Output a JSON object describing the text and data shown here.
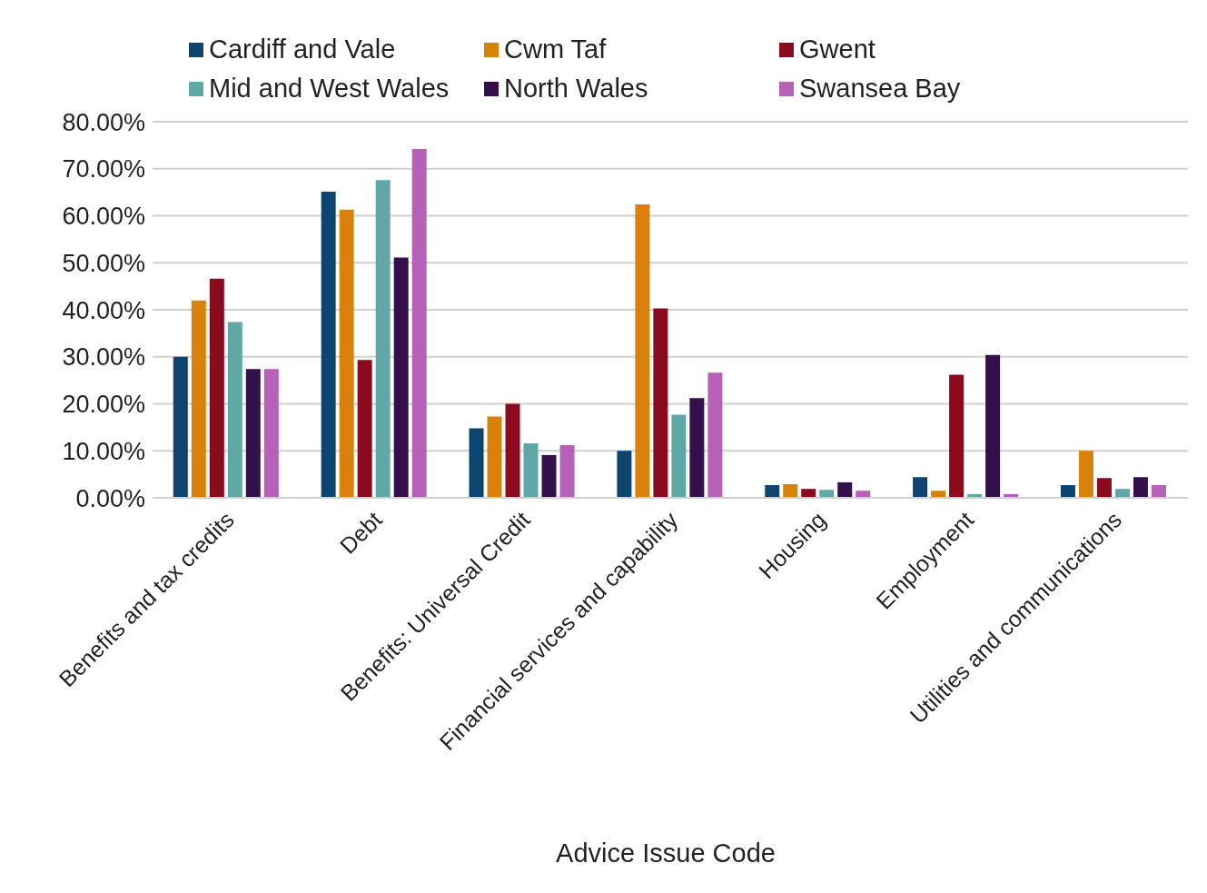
{
  "chart_data": {
    "type": "bar",
    "xlabel": "Advice Issue Code",
    "categories": [
      "Benefits and tax credits",
      "Debt",
      "Benefits: Universal Credit",
      "Financial services and capability",
      "Housing",
      "Employment",
      "Utilities and communications"
    ],
    "series": [
      {
        "name": "Cardiff and Vale",
        "color": "#0e4470",
        "values": [
          30,
          65.1,
          14.8,
          10,
          2.7,
          4.4,
          2.7
        ]
      },
      {
        "name": "Cwm Taf",
        "color": "#d9820b",
        "values": [
          42,
          61.3,
          17.3,
          62.4,
          2.9,
          1.5,
          10
        ]
      },
      {
        "name": "Gwent",
        "color": "#8b0a1e",
        "values": [
          46.6,
          29.3,
          20,
          40.3,
          1.9,
          26.2,
          4.2
        ]
      },
      {
        "name": "Mid and West Wales",
        "color": "#5fa8a6",
        "values": [
          37.4,
          67.6,
          11.6,
          17.7,
          1.7,
          0.8,
          1.9
        ]
      },
      {
        "name": "North Wales",
        "color": "#33104a",
        "values": [
          27.4,
          51.1,
          9.1,
          21.2,
          3.3,
          30.4,
          4.4
        ]
      },
      {
        "name": "Swansea Bay",
        "color": "#b660b8",
        "values": [
          27.4,
          74.2,
          11.2,
          26.6,
          1.5,
          0.8,
          2.7
        ]
      }
    ],
    "ylim": [
      0,
      80
    ],
    "yticks": [
      {
        "value": 0,
        "label": "0.00%"
      },
      {
        "value": 10,
        "label": "10.00%"
      },
      {
        "value": 20,
        "label": "20.00%"
      },
      {
        "value": 30,
        "label": "30.00%"
      },
      {
        "value": 40,
        "label": "40.00%"
      },
      {
        "value": 50,
        "label": "50.00%"
      },
      {
        "value": 60,
        "label": "60.00%"
      },
      {
        "value": 70,
        "label": "70.00%"
      },
      {
        "value": 80,
        "label": "80.00%"
      }
    ],
    "grid": "y",
    "legend": "top"
  }
}
